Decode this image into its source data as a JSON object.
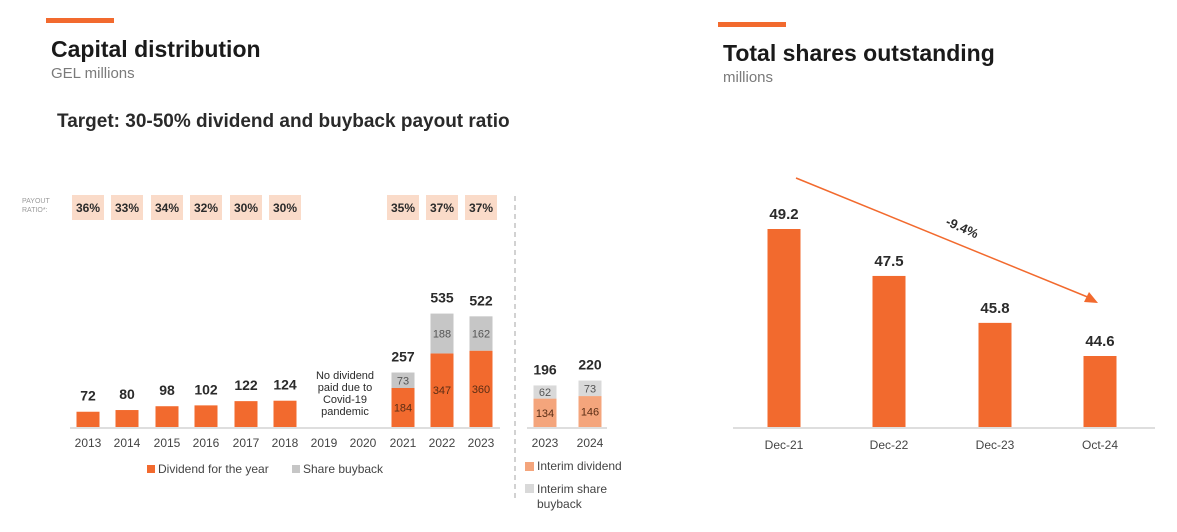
{
  "left_panel": {
    "title": "Capital distribution",
    "subtitle": "GEL millions",
    "target_text": "Target: 30-50% dividend and buyback payout ratio",
    "payout_label_line1": "PAYOUT",
    "payout_label_line2": "RATIO*:",
    "no_dividend_note": [
      "No dividend",
      "paid due to",
      "Covid-19",
      "pandemic"
    ]
  },
  "right_panel": {
    "title": "Total shares outstanding",
    "subtitle": "millions",
    "trend_label": "-9.4%"
  },
  "colors": {
    "accent": "#f26a2e",
    "dividend": "#f26a2e",
    "buyback": "#c6c6c6",
    "interim_dividend": "#f4a57c",
    "interim_buyback": "#d9d9d9",
    "payout_box": "#fadbc9"
  },
  "chart_data": [
    {
      "type": "bar",
      "stacked": true,
      "title": "Capital distribution",
      "ylabel": "GEL millions",
      "categories": [
        "2013",
        "2014",
        "2015",
        "2016",
        "2017",
        "2018",
        "2019",
        "2020",
        "2021",
        "2022",
        "2023"
      ],
      "totals": [
        72,
        80,
        98,
        102,
        122,
        124,
        null,
        null,
        257,
        535,
        522
      ],
      "payout_ratios": [
        "36%",
        "33%",
        "34%",
        "32%",
        "30%",
        "30%",
        "",
        "",
        "35%",
        "37%",
        "37%"
      ],
      "series": [
        {
          "name": "Dividend for the year",
          "values": [
            72,
            80,
            98,
            102,
            122,
            124,
            0,
            0,
            184,
            347,
            360
          ],
          "labels": [
            "",
            "",
            "",
            "",
            "",
            "",
            "",
            "",
            "184",
            "347",
            "360"
          ]
        },
        {
          "name": "Share buyback",
          "values": [
            0,
            0,
            0,
            0,
            0,
            0,
            0,
            0,
            73,
            188,
            162
          ],
          "labels": [
            "",
            "",
            "",
            "",
            "",
            "",
            "",
            "",
            "73",
            "188",
            "162"
          ]
        }
      ]
    },
    {
      "type": "bar",
      "stacked": true,
      "categories": [
        "2023",
        "2024"
      ],
      "totals": [
        196,
        220
      ],
      "series": [
        {
          "name": "Interim dividend",
          "values": [
            134,
            146
          ]
        },
        {
          "name": "Interim share buyback",
          "values": [
            62,
            73
          ]
        }
      ]
    },
    {
      "type": "bar",
      "title": "Total shares outstanding",
      "ylabel": "millions",
      "categories": [
        "Dec-21",
        "Dec-22",
        "Dec-23",
        "Oct-24"
      ],
      "values": [
        49.2,
        47.5,
        45.8,
        44.6
      ],
      "labels": [
        "49.2",
        "47.5",
        "45.8",
        "44.6"
      ],
      "annotation": "-9.4%"
    }
  ]
}
